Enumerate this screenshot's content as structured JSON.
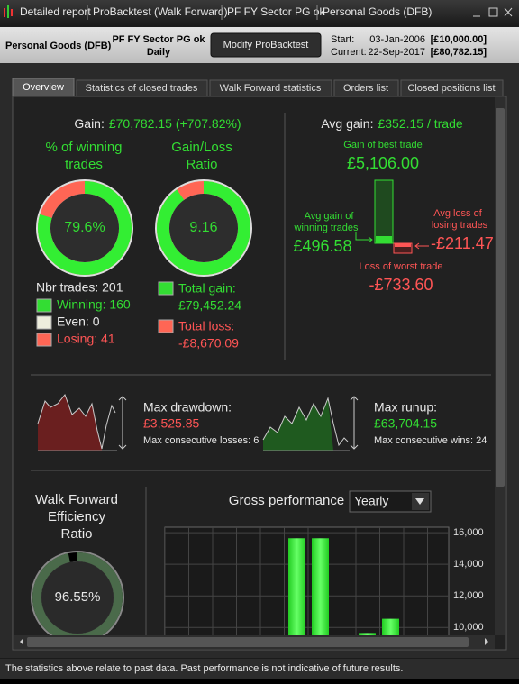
{
  "title_bar": {
    "tabs": [
      "Detailed report",
      "ProBacktest (Walk Forward)",
      "PF FY Sector PG ok",
      "Personal Goods (DFB)"
    ]
  },
  "header": {
    "instrument": "Personal Goods (DFB)",
    "system": "PF FY Sector PG ok",
    "timeframe": "Daily",
    "button": "Modify ProBacktest",
    "start_label": "Start:",
    "start_date": "03-Jan-2006",
    "start_capital": "[£10,000.00]",
    "current_label": "Current:",
    "current_date": "22-Sep-2017",
    "current_capital": "[£80,782.15]"
  },
  "tabs": [
    "Overview",
    "Statistics of closed trades",
    "Walk Forward statistics",
    "Orders list",
    "Closed positions list"
  ],
  "overview": {
    "gain_label": "Gain:",
    "gain_value": "£70,782.15 (+707.82%)",
    "win_title": [
      "% of winning",
      "trades"
    ],
    "win_rate": {
      "value": 79.6,
      "label": "79.6%"
    },
    "ratio_title": [
      "Gain/Loss",
      "Ratio"
    ],
    "ratio": 9.16,
    "trades": {
      "total": "Nbr trades: 201",
      "winning": "Winning: 160",
      "even": "Even: 0",
      "losing": "Losing: 41"
    },
    "total_gain_label": "Total gain:",
    "total_gain": "£79,452.24",
    "total_loss_label": "Total loss:",
    "total_loss": "-£8,670.09",
    "avg_gain_label": "Avg gain:",
    "avg_gain": "£352.15 / trade",
    "best_label": "Gain of best trade",
    "best": "£5,106.00",
    "avg_win_label": [
      "Avg gain of",
      "winning trades"
    ],
    "avg_win": "£496.58",
    "avg_loss_label": [
      "Avg loss of",
      "losing trades"
    ],
    "avg_loss": "-£211.47",
    "worst_label": "Loss of worst trade",
    "worst": "-£733.60",
    "drawdown_label": "Max drawdown:",
    "drawdown": "£3,525.85",
    "consec_losses": "Max consecutive losses: 6",
    "runup_label": "Max runup:",
    "runup": "£63,704.15",
    "consec_wins": "Max consecutive wins: 24",
    "wfe_title": [
      "Walk Forward",
      "Efficiency",
      "Ratio"
    ],
    "wfe": {
      "value": 96.55,
      "label": "96.55%"
    },
    "gross_title": "Gross performance",
    "period": "Yearly",
    "gross_chart": {
      "values": [
        15650,
        15650,
        null,
        9650,
        10550
      ],
      "ylim": [
        9500,
        16350
      ],
      "yticks": [
        {
          "value": 10000,
          "label": "10,000"
        },
        {
          "value": 12000,
          "label": "12,000"
        },
        {
          "value": 14000,
          "label": "14,000"
        },
        {
          "value": 16000,
          "label": "16,000"
        }
      ]
    }
  },
  "footer": "The statistics above relate to past data. Past performance is not indicative of future results."
}
